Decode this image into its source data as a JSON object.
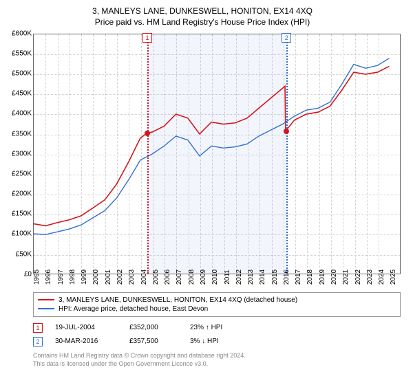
{
  "title": "3, MANLEYS LANE, DUNKESWELL, HONITON, EX14 4XQ",
  "subtitle": "Price paid vs. HM Land Registry's House Price Index (HPI)",
  "chart": {
    "type": "line",
    "ylim": [
      0,
      600000
    ],
    "ytick_step": 50000,
    "ytick_labels": [
      "£0",
      "£50K",
      "£100K",
      "£150K",
      "£200K",
      "£250K",
      "£300K",
      "£350K",
      "£400K",
      "£450K",
      "£500K",
      "£550K",
      "£600K"
    ],
    "xlim": [
      1995,
      2025.9
    ],
    "xtick_years": [
      1995,
      1996,
      1997,
      1998,
      1999,
      2000,
      2001,
      2002,
      2003,
      2004,
      2005,
      2006,
      2007,
      2008,
      2009,
      2010,
      2011,
      2012,
      2013,
      2014,
      2015,
      2016,
      2017,
      2018,
      2019,
      2020,
      2021,
      2022,
      2023,
      2024,
      2025
    ],
    "background_color": "#ffffff",
    "grid_color": "#cccccc",
    "border_color": "#666666",
    "shaded_range": {
      "start": 2004.55,
      "end": 2016.25,
      "fill": "rgba(30,80,200,0.06)"
    },
    "series": [
      {
        "id": "property",
        "label": "3, MANLEYS LANE, DUNKESWELL, HONITON, EX14 4XQ (detached house)",
        "color": "#d4151b",
        "line_width": 1.6,
        "points": [
          [
            1995,
            125000
          ],
          [
            1996,
            120000
          ],
          [
            1997,
            128000
          ],
          [
            1998,
            135000
          ],
          [
            1999,
            145000
          ],
          [
            2000,
            165000
          ],
          [
            2001,
            185000
          ],
          [
            2002,
            225000
          ],
          [
            2003,
            280000
          ],
          [
            2004,
            340000
          ],
          [
            2004.55,
            352000
          ],
          [
            2005,
            355000
          ],
          [
            2006,
            370000
          ],
          [
            2007,
            400000
          ],
          [
            2008,
            390000
          ],
          [
            2009,
            350000
          ],
          [
            2010,
            380000
          ],
          [
            2011,
            375000
          ],
          [
            2012,
            378000
          ],
          [
            2013,
            390000
          ],
          [
            2014,
            415000
          ],
          [
            2015,
            440000
          ],
          [
            2016,
            465000
          ],
          [
            2016.2,
            470000
          ],
          [
            2016.25,
            357500
          ],
          [
            2017,
            385000
          ],
          [
            2018,
            400000
          ],
          [
            2019,
            405000
          ],
          [
            2020,
            420000
          ],
          [
            2021,
            460000
          ],
          [
            2022,
            505000
          ],
          [
            2023,
            500000
          ],
          [
            2024,
            505000
          ],
          [
            2025,
            520000
          ]
        ]
      },
      {
        "id": "hpi",
        "label": "HPI: Average price, detached house, East Devon",
        "color": "#2f6fd0",
        "line_width": 1.4,
        "points": [
          [
            1995,
            100000
          ],
          [
            1996,
            98000
          ],
          [
            1997,
            105000
          ],
          [
            1998,
            112000
          ],
          [
            1999,
            122000
          ],
          [
            2000,
            140000
          ],
          [
            2001,
            158000
          ],
          [
            2002,
            190000
          ],
          [
            2003,
            235000
          ],
          [
            2004,
            285000
          ],
          [
            2005,
            300000
          ],
          [
            2006,
            320000
          ],
          [
            2007,
            345000
          ],
          [
            2008,
            335000
          ],
          [
            2009,
            295000
          ],
          [
            2010,
            320000
          ],
          [
            2011,
            315000
          ],
          [
            2012,
            318000
          ],
          [
            2013,
            325000
          ],
          [
            2014,
            345000
          ],
          [
            2015,
            360000
          ],
          [
            2016,
            375000
          ],
          [
            2017,
            395000
          ],
          [
            2018,
            410000
          ],
          [
            2019,
            415000
          ],
          [
            2020,
            430000
          ],
          [
            2021,
            475000
          ],
          [
            2022,
            525000
          ],
          [
            2023,
            515000
          ],
          [
            2024,
            522000
          ],
          [
            2025,
            540000
          ]
        ]
      }
    ],
    "markers": [
      {
        "n": "1",
        "x": 2004.55,
        "y": 352000,
        "color": "#d4151b",
        "dot_color": "#d4151b"
      },
      {
        "n": "2",
        "x": 2016.25,
        "y": 357500,
        "color": "#2f6fd0",
        "dot_color": "#d4151b"
      }
    ]
  },
  "events": [
    {
      "n": "1",
      "color": "#d4151b",
      "date": "19-JUL-2004",
      "price": "£352,000",
      "delta": "23% ↑ HPI"
    },
    {
      "n": "2",
      "color": "#2f6fd0",
      "date": "30-MAR-2016",
      "price": "£357,500",
      "delta": "3% ↓ HPI"
    }
  ],
  "attribution": {
    "l1": "Contains HM Land Registry data © Crown copyright and database right 2024.",
    "l2": "This data is licensed under the Open Government Licence v3.0."
  }
}
